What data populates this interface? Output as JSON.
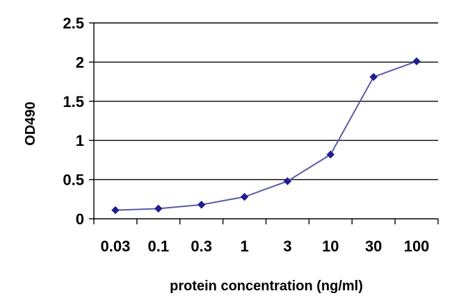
{
  "chart_data": {
    "type": "line",
    "title": "",
    "xlabel": "protein concentration (ng/ml)",
    "ylabel": "OD490",
    "categories": [
      "0.03",
      "0.1",
      "0.3",
      "1",
      "3",
      "10",
      "30",
      "100"
    ],
    "series": [
      {
        "values": [
          0.11,
          0.13,
          0.18,
          0.28,
          0.48,
          0.82,
          1.81,
          2.01
        ]
      }
    ],
    "ylim": [
      0,
      2.5
    ],
    "yticks": [
      "0",
      "0.5",
      "1",
      "1.5",
      "2",
      "2.5"
    ],
    "grid": true,
    "legend": "none",
    "colors": {
      "line": "#5a5aa8",
      "marker": "#1f1f8f",
      "grid": "#000000",
      "axis": "#000000"
    }
  }
}
